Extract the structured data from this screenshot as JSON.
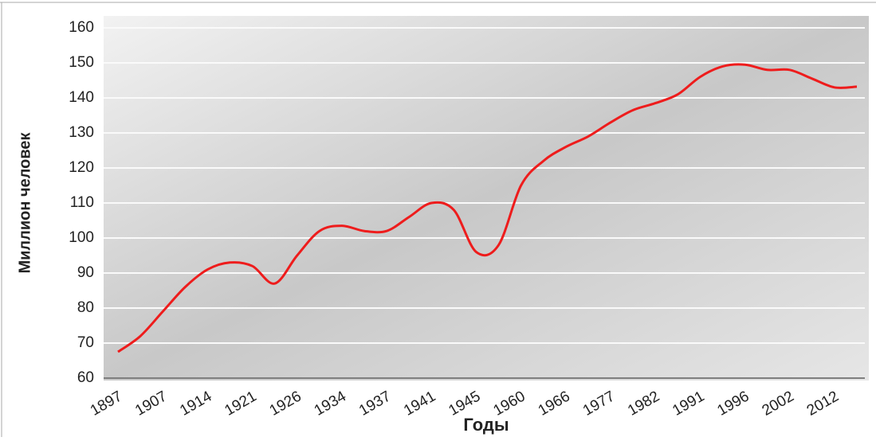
{
  "chart_data": {
    "type": "line",
    "y_label": "Миллион человек",
    "x_label": "Годы",
    "categories": [
      "1897",
      null,
      "1907",
      null,
      "1914",
      null,
      "1921",
      null,
      "1926",
      null,
      "1934",
      null,
      "1937",
      null,
      "1941",
      null,
      "1945",
      null,
      "1960",
      null,
      "1966",
      null,
      "1977",
      null,
      "1982",
      null,
      "1991",
      null,
      "1996",
      null,
      "2002",
      null,
      "2012",
      null
    ],
    "series": [
      {
        "color": "#ee1c1c",
        "values": [
          67.5,
          72,
          79,
          86,
          91,
          93,
          92,
          87,
          95,
          102,
          103.5,
          102,
          102,
          106,
          110,
          108,
          96,
          98,
          115,
          122,
          126,
          129,
          133,
          136.5,
          138.5,
          141,
          146,
          149,
          149.5,
          148,
          148,
          145.5,
          143,
          143.2
        ]
      }
    ],
    "ylim": [
      60,
      160
    ],
    "yticks": [
      60,
      70,
      80,
      90,
      100,
      110,
      120,
      130,
      140,
      150,
      160
    ],
    "grid": true
  }
}
